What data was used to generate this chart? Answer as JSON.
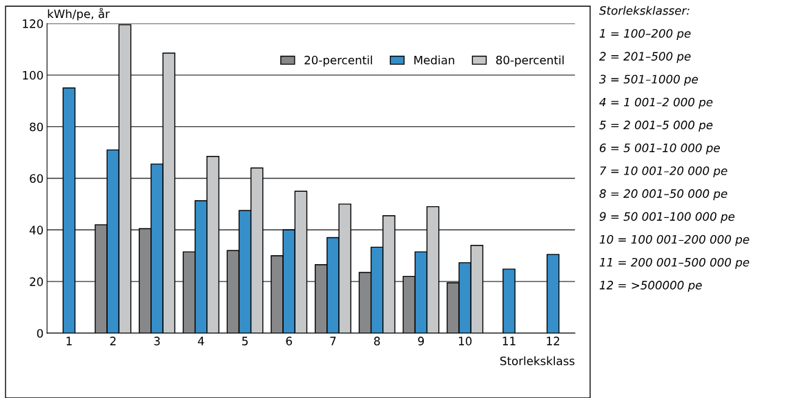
{
  "chart_data": {
    "type": "bar",
    "ylabel": "kWh/pe, år",
    "xlabel": "Storleksklass",
    "categories": [
      "1",
      "2",
      "3",
      "4",
      "5",
      "6",
      "7",
      "8",
      "9",
      "10",
      "11",
      "12"
    ],
    "series": [
      {
        "name": "20-percentil",
        "color": "#87888a",
        "values": [
          null,
          42,
          40.5,
          31.5,
          32,
          30,
          26.5,
          23.5,
          22,
          19.5,
          null,
          null
        ]
      },
      {
        "name": "Median",
        "color": "#368fc9",
        "values": [
          95,
          71,
          65.5,
          51.3,
          47.5,
          40,
          37,
          33.3,
          31.5,
          27.3,
          24.8,
          30.5
        ]
      },
      {
        "name": "80-percentil",
        "color": "#c6c7c9",
        "values": [
          null,
          119.5,
          108.5,
          68.5,
          64,
          55,
          50,
          45.5,
          49,
          34,
          null,
          null
        ]
      }
    ],
    "ylim": [
      0,
      120
    ],
    "yticks": [
      0,
      20,
      40,
      60,
      80,
      100,
      120
    ],
    "grid": "y",
    "legend": "top right",
    "annotations": [
      "Storleksklasser:",
      "1 = 100–200 pe",
      "2 = 201–500 pe",
      "3 = 501–1000 pe",
      "4 = 1 001–2 000 pe",
      "5 = 2 001–5 000 pe",
      "6 = 5 001–10 000 pe",
      "7 = 10 001–20 000 pe",
      "8 = 20 001–50 000 pe",
      "9 = 50 001–100 000 pe",
      "10 = 100 001–200 000 pe",
      "11 = 200 001–500 000 pe",
      "12 = >500000 pe"
    ]
  }
}
